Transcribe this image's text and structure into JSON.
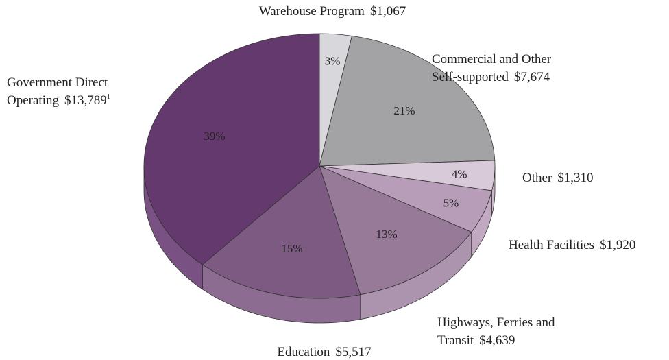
{
  "chart_data": {
    "type": "pie3d",
    "categories": [
      [
        "Warehouse Program"
      ],
      [
        "Commercial and Other",
        "Self-supported"
      ],
      [
        "Other"
      ],
      [
        "Health Facilities"
      ],
      [
        "Highways, Ferries and",
        "Transit"
      ],
      [
        "Education"
      ],
      [
        "Government Direct",
        "Operating"
      ]
    ],
    "values": [
      1067,
      7674,
      1310,
      1920,
      4639,
      5517,
      13789
    ],
    "value_labels": [
      "$1,067",
      "$7,674",
      "$1,310",
      "$1,920",
      "$4,639",
      "$5,517",
      "$13,789"
    ],
    "percents": [
      3,
      21,
      4,
      5,
      13,
      15,
      39
    ],
    "percent_labels": [
      "3%",
      "21%",
      "4%",
      "5%",
      "13%",
      "15%",
      "39%"
    ],
    "footnote_mark": "1",
    "colors": [
      "#d8d8dc",
      "#a3a3a5",
      "#d9cad9",
      "#b89db8",
      "#967a98",
      "#7c5a82",
      "#64396d"
    ],
    "side_colors": [
      "#c4c4c8",
      "#909092",
      "#cbb9cb",
      "#c2a9c2",
      "#ad94ae",
      "#8c6d91",
      "#7a5183"
    ]
  }
}
